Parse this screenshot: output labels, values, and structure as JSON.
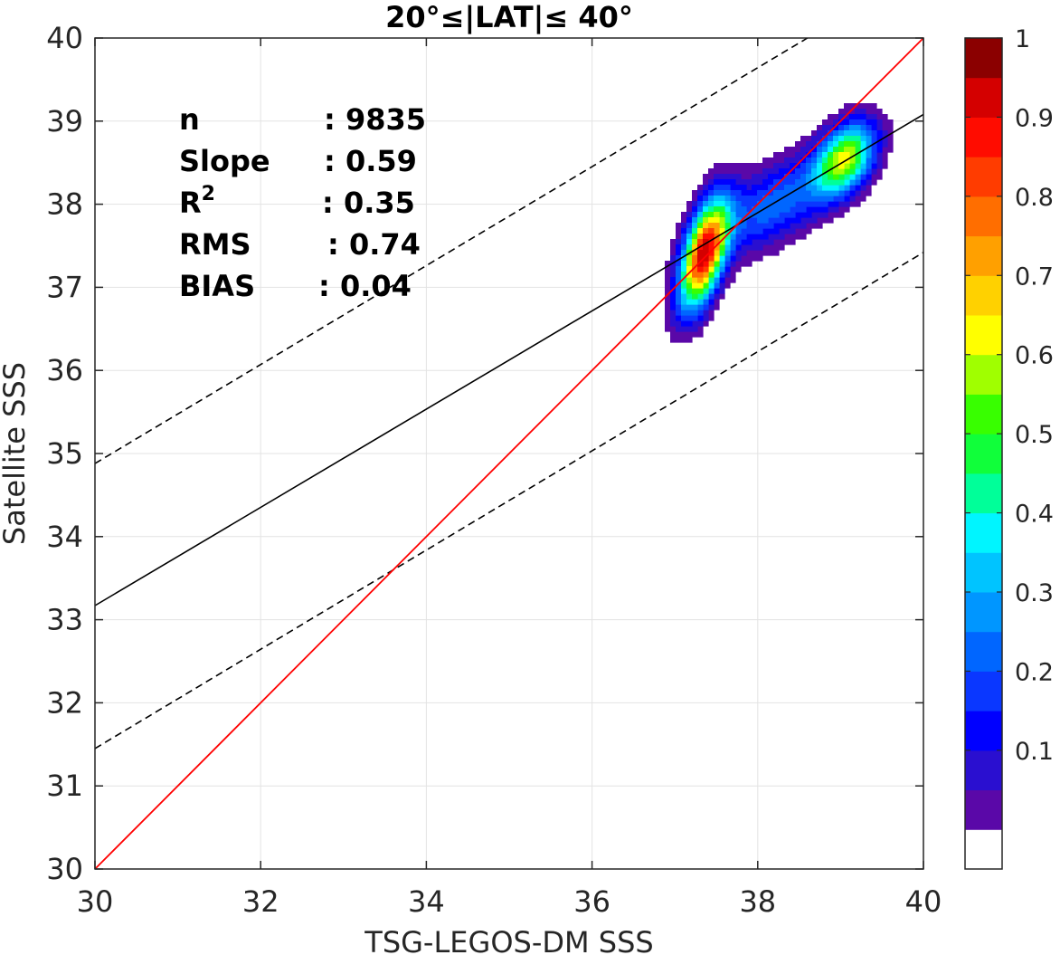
{
  "chart_data": {
    "type": "heatmap",
    "title": "20°≤|LAT|≤ 40°",
    "xlabel": "TSG-LEGOS-DM SSS",
    "ylabel": "Satellite SSS",
    "xlim": [
      30,
      40
    ],
    "ylim": [
      30,
      40
    ],
    "xticks": [
      "30",
      "32",
      "34",
      "36",
      "38",
      "40"
    ],
    "yticks": [
      "30",
      "31",
      "32",
      "33",
      "34",
      "35",
      "36",
      "37",
      "38",
      "39",
      "40"
    ],
    "grid": true,
    "stats": [
      {
        "label": "n",
        "value": ": 9835"
      },
      {
        "label": "Slope",
        "value": ": 0.59"
      },
      {
        "label": "R",
        "sup": "2",
        "value": ": 0.35"
      },
      {
        "label": "RMS",
        "value": ": 0.74"
      },
      {
        "label": "BIAS",
        "value": ": 0.04"
      }
    ],
    "lines": {
      "identity": {
        "color": "#ff0000",
        "x": [
          30,
          40
        ],
        "y": [
          30,
          40
        ]
      },
      "regression": {
        "color": "#000000",
        "x": [
          30,
          40
        ],
        "y": [
          33.17,
          39.08
        ]
      },
      "upper_bound": {
        "color": "#000000",
        "dash": true,
        "x": [
          30,
          38.6
        ],
        "y": [
          34.88,
          40
        ]
      },
      "lower_bound": {
        "color": "#000000",
        "dash": true,
        "x": [
          30,
          40
        ],
        "y": [
          31.45,
          37.42
        ]
      }
    },
    "density_peaks": [
      {
        "x": 37.35,
        "y": 37.4,
        "peak": 0.95,
        "sx": 0.2,
        "sy": 0.45,
        "rho": 0.55
      },
      {
        "x": 39.05,
        "y": 38.55,
        "peak": 0.62,
        "sx": 0.25,
        "sy": 0.3,
        "rho": 0.4
      },
      {
        "x": 38.2,
        "y": 38.0,
        "peak": 0.28,
        "sx": 0.5,
        "sy": 0.4,
        "rho": 0.6
      }
    ],
    "contour_levels": [
      0.05,
      0.1,
      0.15,
      0.2,
      0.25,
      0.3,
      0.35,
      0.4,
      0.45,
      0.5,
      0.55,
      0.6,
      0.65,
      0.7,
      0.75,
      0.8,
      0.85,
      0.9,
      0.95
    ],
    "colorbar": {
      "ticks": [
        "0.1",
        "0.2",
        "0.3",
        "0.4",
        "0.5",
        "0.6",
        "0.7",
        "0.8",
        "0.9",
        "1"
      ],
      "colors": [
        "#ffffff",
        "#5a08a8",
        "#2a0fd0",
        "#0000ff",
        "#0a37ff",
        "#0066ff",
        "#0096ff",
        "#00c4ff",
        "#00f5ff",
        "#00ff99",
        "#10ff3a",
        "#38ff00",
        "#a0ff00",
        "#ffff00",
        "#ffd100",
        "#ffa000",
        "#ff6e00",
        "#ff3c00",
        "#ff0c00",
        "#d40000",
        "#8b0000"
      ]
    }
  }
}
